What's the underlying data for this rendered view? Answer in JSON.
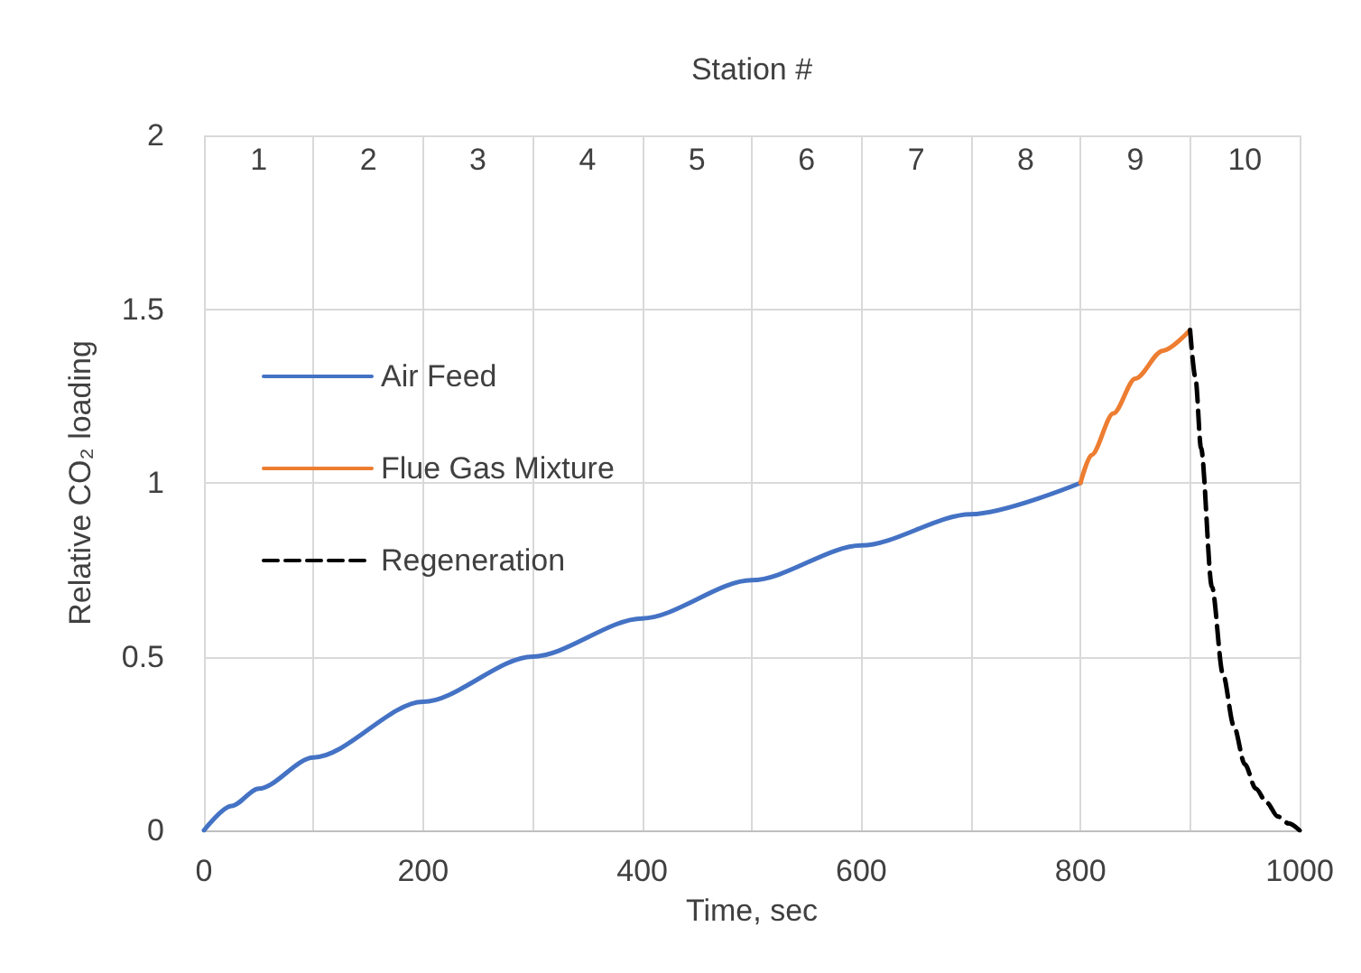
{
  "chart_data": {
    "type": "line",
    "xlabel": "Time, sec",
    "ylabel": "Relative CO₂ loading",
    "x2label": "Station #",
    "xlim": [
      0,
      1000
    ],
    "xticks": [
      0,
      {
        "value": 100,
        "label": null
      },
      200,
      {
        "value": 300,
        "label": null
      },
      400,
      {
        "value": 500,
        "label": null
      },
      600,
      {
        "value": 700,
        "label": null
      },
      800,
      {
        "value": 900,
        "label": null
      },
      1000
    ],
    "x2lim": [
      0.5,
      10.5
    ],
    "x2ticks": [
      1,
      2,
      3,
      4,
      5,
      6,
      7,
      8,
      9,
      10
    ],
    "ylim": [
      0,
      2
    ],
    "yticks": [
      0,
      0.5,
      1,
      1.5,
      2
    ],
    "grid": true,
    "legend": "left",
    "marker": "none",
    "series": [
      {
        "name": "Air Feed",
        "color": "#4472c4",
        "line_style": "solid",
        "x": [
          0,
          25,
          50,
          100,
          200,
          300,
          400,
          500,
          600,
          700,
          800
        ],
        "values": [
          0,
          0.07,
          0.12,
          0.21,
          0.37,
          0.5,
          0.61,
          0.72,
          0.82,
          0.91,
          1.0
        ]
      },
      {
        "name": "Flue Gas Mixture",
        "color": "#ed7d31",
        "line_style": "solid",
        "x": [
          800,
          810,
          830,
          850,
          875,
          900
        ],
        "values": [
          1.0,
          1.08,
          1.2,
          1.3,
          1.38,
          1.44
        ]
      },
      {
        "name": "Regeneration",
        "color": "#000000",
        "line_style": "dashed",
        "x": [
          900,
          905,
          910,
          920,
          930,
          940,
          950,
          960,
          970,
          980,
          990,
          1000
        ],
        "values": [
          1.44,
          1.3,
          1.1,
          0.7,
          0.45,
          0.3,
          0.19,
          0.12,
          0.08,
          0.04,
          0.02,
          0
        ]
      }
    ]
  }
}
